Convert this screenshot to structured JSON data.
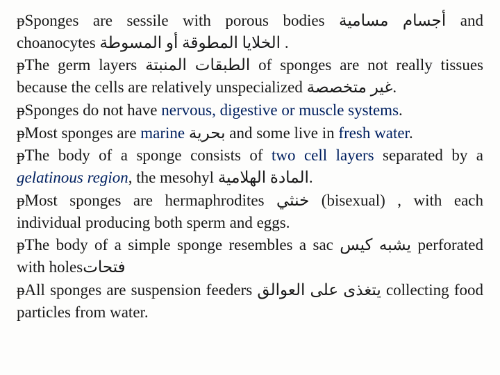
{
  "bullets": [
    {
      "pre": "Sponges are sessile with porous bodies ",
      "ar1": "أجسام مسامية",
      "mid": " and choanocytes ",
      "ar2": "الخلايا المطوقة أو المسوطة",
      "post": " ."
    },
    {
      "pre": "The germ layers ",
      "ar1": "الطبقات المنبتة",
      "mid": " of sponges are not really tissues because the cells are relatively unspecialized ",
      "ar2": "غير متخصصة",
      "post": "."
    },
    {
      "pre": "Sponges do not have ",
      "hi1": "nervous, digestive or muscle systems",
      "post": "."
    },
    {
      "pre": "Most sponges are ",
      "hi1": "marine ",
      "ar1": "بحرية",
      "mid": " and some live in ",
      "hi2": "fresh water",
      "post": "."
    },
    {
      "pre": "The body of a sponge consists of ",
      "hi1": "two cell layers",
      "mid1": " separated by a ",
      "it1": "gelatinous region",
      "mid2": ", the mesohyl ",
      "ar1": "المادة الهلامية",
      "post": "."
    },
    {
      "pre": "Most sponges are hermaphrodites ",
      "ar1": "خنثي",
      "mid": " (bisexual) , with each individual producing both sperm and eggs."
    },
    {
      "pre": "The body of a simple sponge resembles a sac ",
      "ar1": "يشبه كيس",
      "mid": " perforated with holes",
      "ar2": "فتحات"
    },
    {
      "pre": "All sponges are suspension feeders ",
      "ar1": "يتغذى على العوالق",
      "mid": "  collecting food particles from water."
    }
  ],
  "bulletGlyph": "w"
}
